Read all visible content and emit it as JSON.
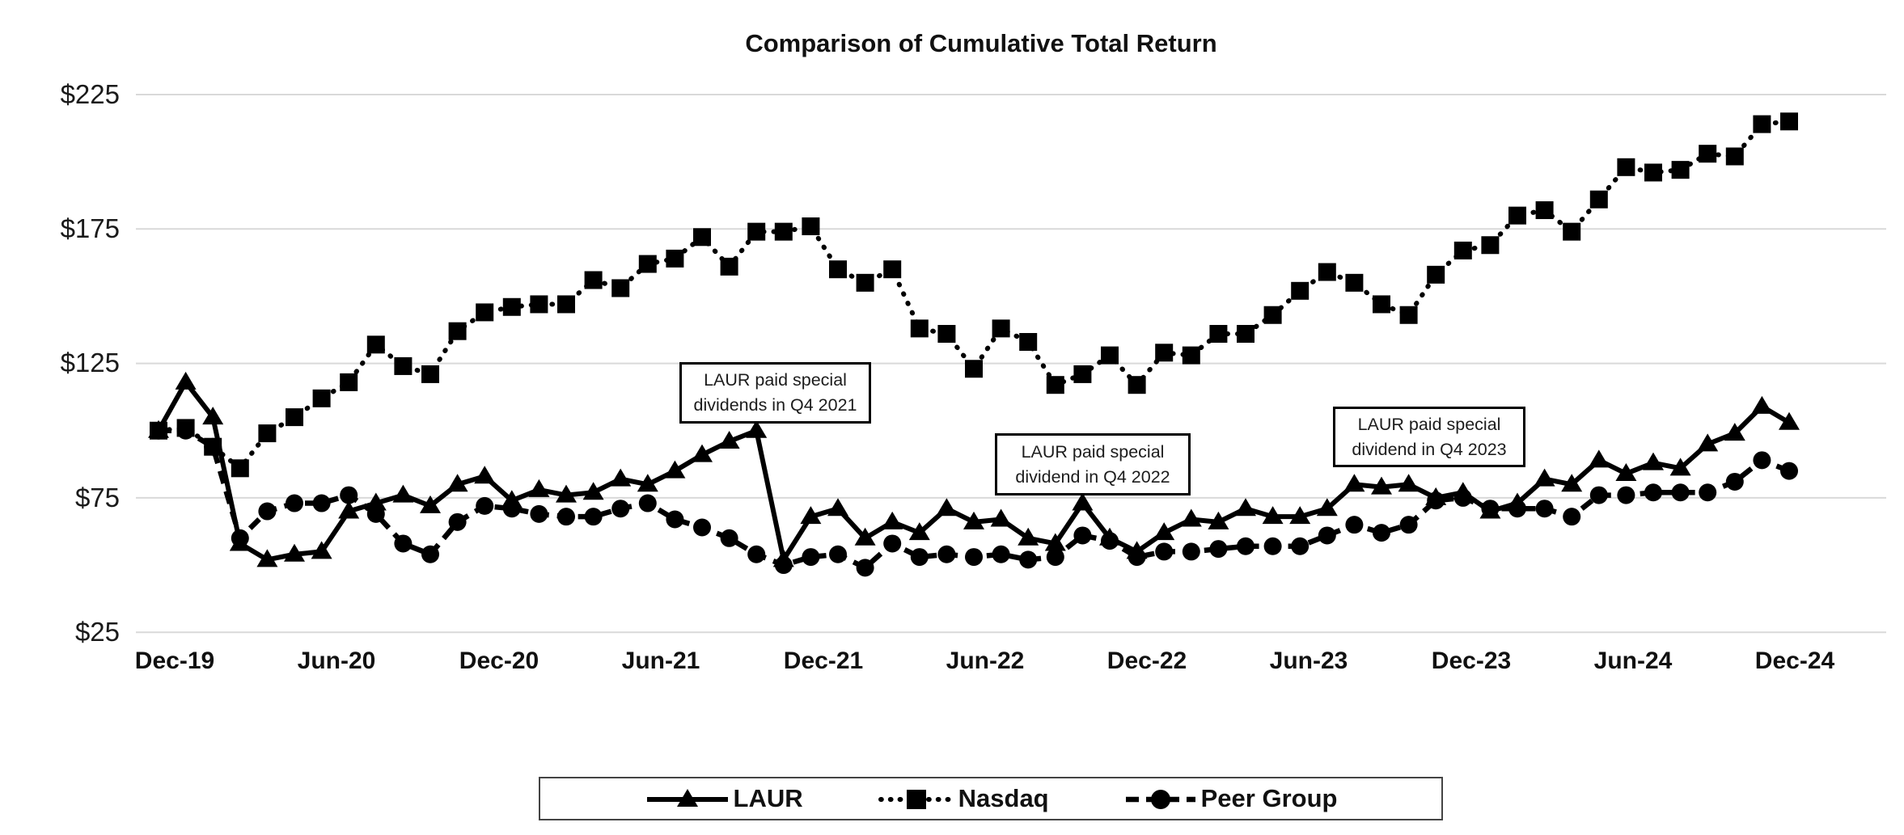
{
  "title": "Comparison of Cumulative Total Return",
  "chart_data": {
    "type": "line",
    "title": "Comparison of Cumulative Total Return",
    "xlabel": "",
    "ylabel": "",
    "ylim": [
      25,
      225
    ],
    "grid": true,
    "legend_position": "bottom",
    "y_ticks": [
      225,
      175,
      125,
      75,
      25
    ],
    "y_tick_labels": [
      "$225",
      "$175",
      "$125",
      "$75",
      "$25"
    ],
    "x_tick_labels": [
      "Dec-19",
      "Jun-20",
      "Dec-20",
      "Jun-21",
      "Dec-21",
      "Jun-22",
      "Dec-22",
      "Jun-23",
      "Dec-23",
      "Jun-24",
      "Dec-24"
    ],
    "x": [
      "Dec-19",
      "Jan-20",
      "Feb-20",
      "Mar-20",
      "Apr-20",
      "May-20",
      "Jun-20",
      "Jul-20",
      "Aug-20",
      "Sep-20",
      "Oct-20",
      "Nov-20",
      "Dec-20",
      "Jan-21",
      "Feb-21",
      "Mar-21",
      "Apr-21",
      "May-21",
      "Jun-21",
      "Jul-21",
      "Aug-21",
      "Sep-21",
      "Oct-21",
      "Nov-21",
      "Dec-21",
      "Jan-22",
      "Feb-22",
      "Mar-22",
      "Apr-22",
      "May-22",
      "Jun-22",
      "Jul-22",
      "Aug-22",
      "Sep-22",
      "Oct-22",
      "Nov-22",
      "Dec-22",
      "Jan-23",
      "Feb-23",
      "Mar-23",
      "Apr-23",
      "May-23",
      "Jun-23",
      "Jul-23",
      "Aug-23",
      "Sep-23",
      "Oct-23",
      "Nov-23",
      "Dec-23",
      "Jan-24",
      "Feb-24",
      "Mar-24",
      "Apr-24",
      "May-24",
      "Jun-24",
      "Jul-24",
      "Aug-24",
      "Sep-24",
      "Oct-24",
      "Nov-24",
      "Dec-24"
    ],
    "series": [
      {
        "name": "Nasdaq",
        "marker": "square",
        "line": "dotted",
        "color": "#000000",
        "values": [
          100,
          101,
          94,
          86,
          99,
          105,
          112,
          118,
          132,
          124,
          121,
          137,
          144,
          146,
          147,
          147,
          156,
          153,
          162,
          164,
          172,
          161,
          174,
          174,
          176,
          160,
          155,
          160,
          138,
          136,
          123,
          138,
          133,
          117,
          121,
          128,
          117,
          129,
          128,
          136,
          136,
          143,
          152,
          159,
          155,
          147,
          143,
          158,
          167,
          169,
          180,
          182,
          174,
          186,
          198,
          196,
          197,
          203,
          202,
          214,
          215
        ]
      },
      {
        "name": "Peer Group",
        "marker": "circle",
        "line": "dashed",
        "color": "#000000",
        "values": [
          100,
          100,
          94,
          60,
          70,
          73,
          73,
          76,
          69,
          58,
          54,
          66,
          72,
          71,
          69,
          68,
          68,
          71,
          73,
          67,
          64,
          60,
          54,
          50,
          53,
          54,
          49,
          58,
          53,
          54,
          53,
          54,
          52,
          53,
          61,
          59,
          53,
          55,
          55,
          56,
          57,
          57,
          57,
          61,
          65,
          62,
          65,
          74,
          75,
          71,
          71,
          71,
          68,
          76,
          76,
          77,
          77,
          77,
          81,
          89,
          85
        ]
      },
      {
        "name": "LAUR",
        "marker": "triangle",
        "line": "solid",
        "color": "#000000",
        "values": [
          100,
          118,
          105,
          58,
          52,
          54,
          55,
          70,
          73,
          76,
          72,
          80,
          83,
          74,
          78,
          76,
          77,
          82,
          80,
          85,
          91,
          96,
          100,
          52,
          68,
          71,
          60,
          66,
          62,
          71,
          66,
          67,
          60,
          58,
          73,
          60,
          55,
          62,
          67,
          66,
          71,
          68,
          68,
          71,
          80,
          79,
          80,
          75,
          77,
          70,
          73,
          82,
          80,
          89,
          84,
          88,
          86,
          95,
          99,
          109,
          103
        ]
      }
    ],
    "annotations": [
      {
        "line1": "LAUR paid special",
        "line2": "dividends in Q4 2021"
      },
      {
        "line1": "LAUR paid special",
        "line2": "dividend in Q4 2022"
      },
      {
        "line1": "LAUR paid special",
        "line2": "dividend in Q4 2023"
      }
    ]
  },
  "legend": {
    "items": [
      {
        "label": "LAUR"
      },
      {
        "label": "Nasdaq"
      },
      {
        "label": "Peer Group"
      }
    ]
  },
  "colors": {
    "series": "#000000",
    "grid": "#d9d9d9",
    "annotation_border": "#000000"
  }
}
